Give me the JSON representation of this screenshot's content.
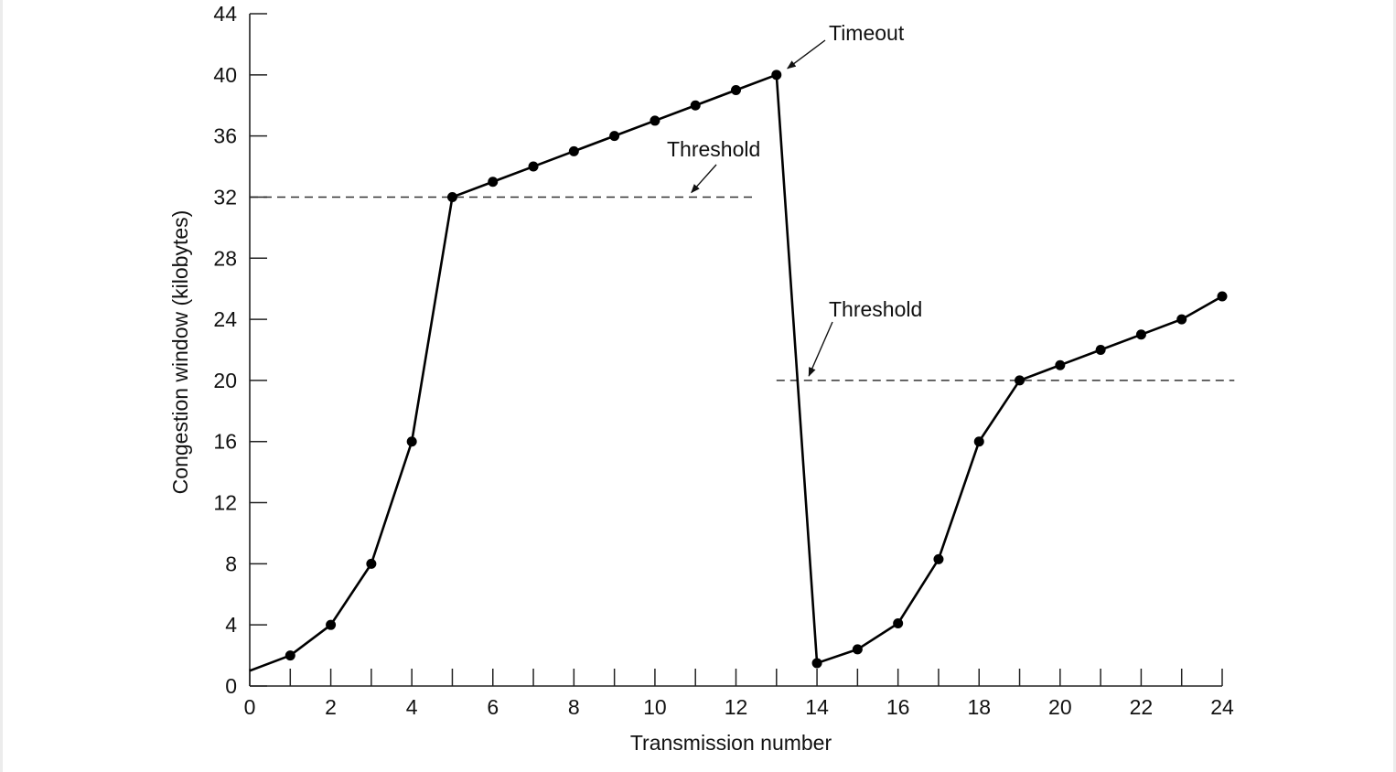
{
  "chart_data": {
    "type": "line",
    "title": "",
    "xlabel": "Transmission number",
    "ylabel": "Congestion window (kilobytes)",
    "xlim": [
      0,
      24
    ],
    "ylim": [
      0,
      44
    ],
    "x_ticks_labeled": [
      0,
      2,
      4,
      6,
      8,
      10,
      12,
      14,
      16,
      18,
      20,
      22,
      24
    ],
    "x_ticks_minor": [
      1,
      3,
      5,
      7,
      9,
      11,
      13,
      15,
      17,
      19,
      21,
      23
    ],
    "y_ticks": [
      0,
      4,
      8,
      12,
      16,
      20,
      24,
      28,
      32,
      36,
      40,
      44
    ],
    "grid": false,
    "legend": "none",
    "series": [
      {
        "line_start": [
          0,
          1
        ],
        "x": [
          1,
          2,
          3,
          4,
          5,
          6,
          7,
          8,
          9,
          10,
          11,
          12,
          13,
          14,
          15,
          16,
          17,
          18,
          19,
          20,
          21,
          22,
          23,
          24
        ],
        "values": [
          2,
          4,
          8,
          16,
          32,
          33,
          34,
          35,
          36,
          37,
          38,
          39,
          40,
          1.5,
          2.4,
          4.1,
          8.3,
          16,
          20,
          21,
          22,
          23,
          24,
          25.5
        ],
        "color": "#000000"
      }
    ],
    "thresholds": [
      {
        "y": 32,
        "x_from": 0,
        "x_to": 12.4
      },
      {
        "y": 20,
        "x_from": 13,
        "x_to": 24.3
      }
    ],
    "annotations": [
      {
        "text": "Timeout",
        "target_x": 13,
        "target_y": 40.3
      },
      {
        "text": "Threshold",
        "target_x": 10.9,
        "target_y": 32
      },
      {
        "text": "Threshold",
        "target_x": 13.8,
        "target_y": 20
      }
    ]
  }
}
